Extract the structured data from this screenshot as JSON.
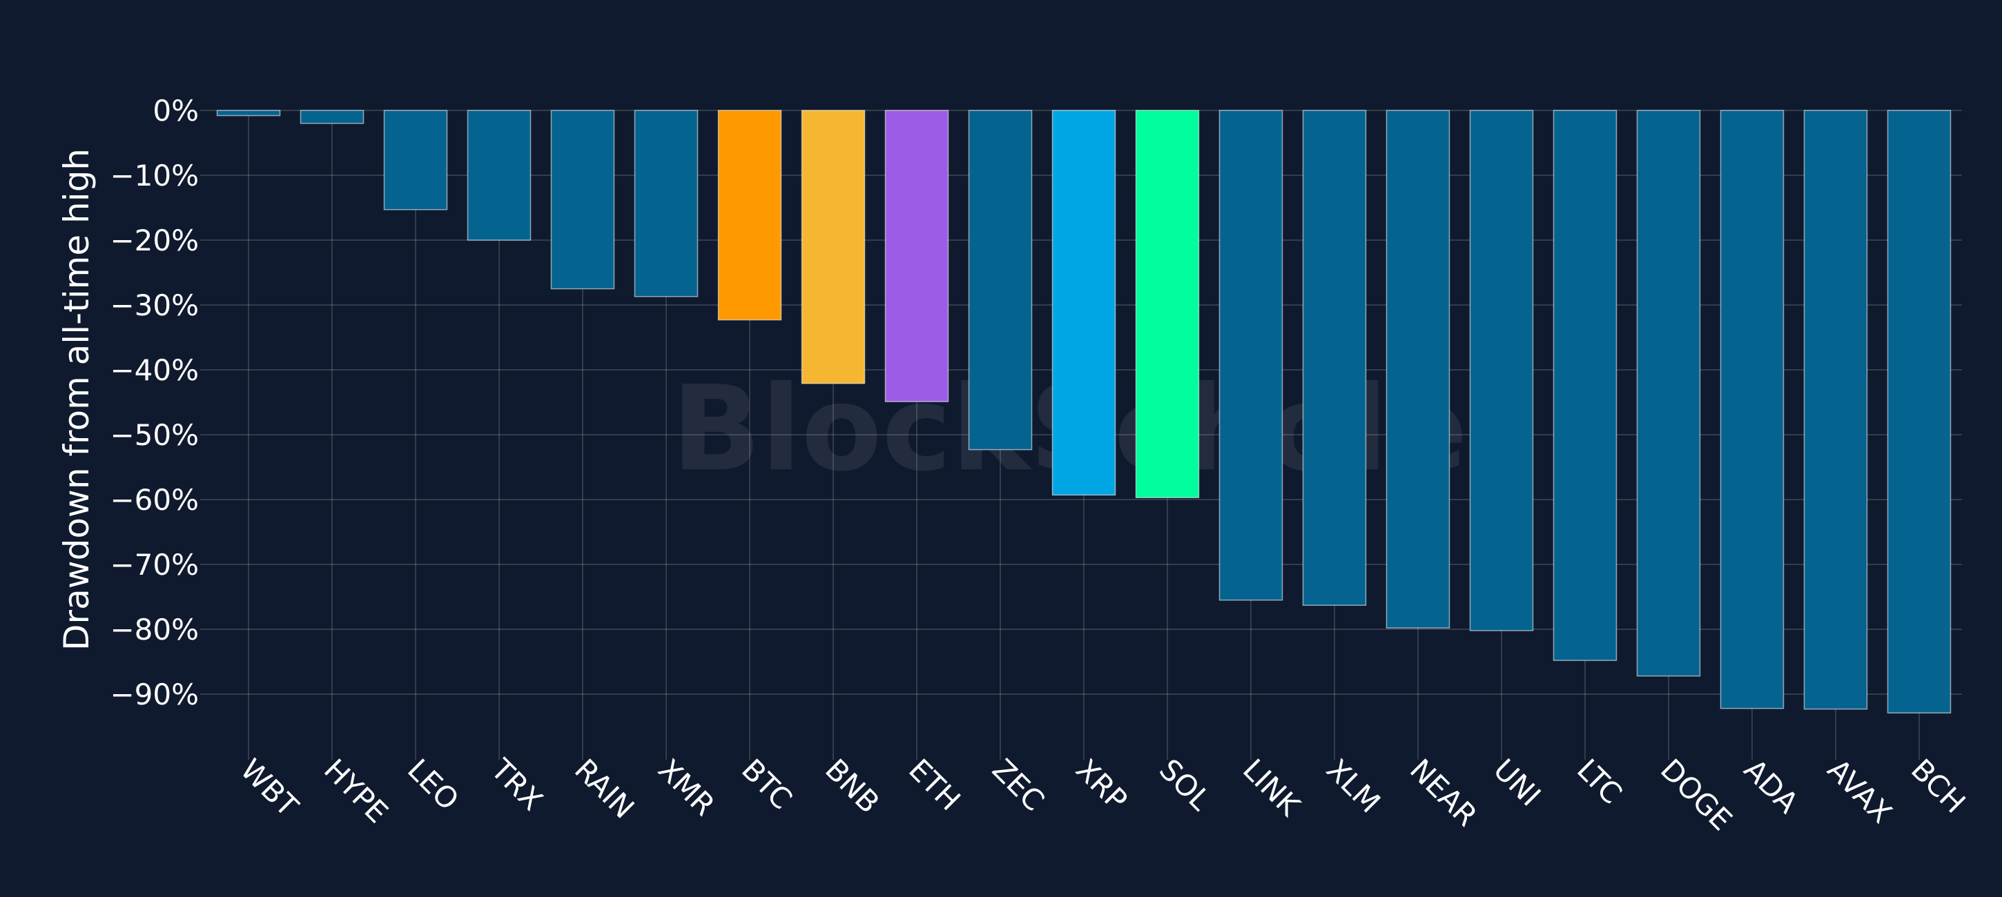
{
  "watermark": "BlockScholes",
  "chart_data": {
    "type": "bar",
    "title": "",
    "xlabel": "",
    "ylabel": "Drawdown from all-time high",
    "ylim": [
      -98,
      0
    ],
    "yticks": [
      0,
      -10,
      -20,
      -30,
      -40,
      -50,
      -60,
      -70,
      -80,
      -90
    ],
    "ytick_labels": [
      "0%",
      "−10%",
      "−20%",
      "−30%",
      "−40%",
      "−50%",
      "−60%",
      "−70%",
      "−80%",
      "−90%"
    ],
    "grid": true,
    "default_color": "#05638f",
    "categories": [
      "WBT",
      "HYPE",
      "LEO",
      "TRX",
      "RAIN",
      "XMR",
      "BTC",
      "BNB",
      "ETH",
      "ZEC",
      "XRP",
      "SOL",
      "LINK",
      "XLM",
      "NEAR",
      "UNI",
      "LTC",
      "DOGE",
      "ADA",
      "AVAX",
      "BCH"
    ],
    "values": [
      -0.8,
      -2,
      -15.3,
      -20,
      -27.5,
      -28.7,
      -32.3,
      -42.1,
      -44.9,
      -52.3,
      -59.3,
      -59.7,
      -75.5,
      -76.3,
      -79.8,
      -80.2,
      -84.8,
      -87.2,
      -92.2,
      -92.3,
      -92.9
    ],
    "colors": [
      "#05638f",
      "#05638f",
      "#05638f",
      "#05638f",
      "#05638f",
      "#05638f",
      "#ff9900",
      "#f5b731",
      "#9b5de5",
      "#05638f",
      "#00a6e3",
      "#00ff9c",
      "#05638f",
      "#05638f",
      "#05638f",
      "#05638f",
      "#05638f",
      "#05638f",
      "#05638f",
      "#05638f",
      "#05638f"
    ]
  }
}
